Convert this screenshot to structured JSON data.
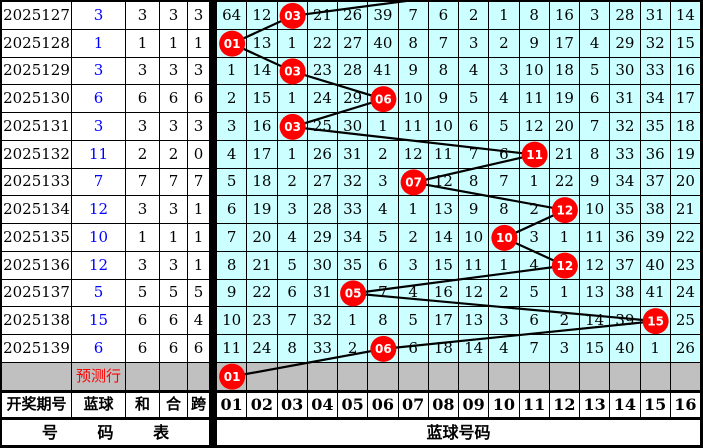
{
  "colors": {
    "grid_bg": "#ccffff",
    "prediction_bg": "#c0c0c0",
    "ball_red": "#ff0000",
    "ball_text": "#ffffff",
    "blue_value": "#0000ff",
    "line": "#000000"
  },
  "left_header": {
    "period": "开奖期号",
    "blue": "蓝球",
    "sum": "和",
    "combine": "合",
    "span": "跨"
  },
  "footer": {
    "left": "号 码 表",
    "right": "蓝球号码"
  },
  "columns": [
    "01",
    "02",
    "03",
    "04",
    "05",
    "06",
    "07",
    "08",
    "09",
    "10",
    "11",
    "12",
    "13",
    "14",
    "15",
    "16"
  ],
  "prediction": {
    "label": "预测行",
    "ball": "01",
    "draw": 1
  },
  "incoming_from_column": 10,
  "rows": [
    {
      "period": "2025127",
      "blue": "3",
      "sum": "3",
      "combine": "3",
      "span": "3",
      "draw": 3,
      "cells": [
        "64",
        "12",
        "03",
        "21",
        "26",
        "39",
        "7",
        "6",
        "2",
        "1",
        "8",
        "16",
        "3",
        "28",
        "31",
        "14"
      ]
    },
    {
      "period": "2025128",
      "blue": "1",
      "sum": "1",
      "combine": "1",
      "span": "1",
      "draw": 1,
      "cells": [
        "01",
        "13",
        "1",
        "22",
        "27",
        "40",
        "8",
        "7",
        "3",
        "2",
        "9",
        "17",
        "4",
        "29",
        "32",
        "15"
      ]
    },
    {
      "period": "2025129",
      "blue": "3",
      "sum": "3",
      "combine": "3",
      "span": "3",
      "draw": 3,
      "cells": [
        "1",
        "14",
        "03",
        "23",
        "28",
        "41",
        "9",
        "8",
        "4",
        "3",
        "10",
        "18",
        "5",
        "30",
        "33",
        "16"
      ]
    },
    {
      "period": "2025130",
      "blue": "6",
      "sum": "6",
      "combine": "6",
      "span": "6",
      "draw": 6,
      "cells": [
        "2",
        "15",
        "1",
        "24",
        "29",
        "06",
        "10",
        "9",
        "5",
        "4",
        "11",
        "19",
        "6",
        "31",
        "34",
        "17"
      ]
    },
    {
      "period": "2025131",
      "blue": "3",
      "sum": "3",
      "combine": "3",
      "span": "3",
      "draw": 3,
      "cells": [
        "3",
        "16",
        "03",
        "25",
        "30",
        "1",
        "11",
        "10",
        "6",
        "5",
        "12",
        "20",
        "7",
        "32",
        "35",
        "18"
      ]
    },
    {
      "period": "2025132",
      "blue": "11",
      "sum": "2",
      "combine": "2",
      "span": "0",
      "draw": 11,
      "cells": [
        "4",
        "17",
        "1",
        "26",
        "31",
        "2",
        "12",
        "11",
        "7",
        "6",
        "11",
        "21",
        "8",
        "33",
        "36",
        "19"
      ]
    },
    {
      "period": "2025133",
      "blue": "7",
      "sum": "7",
      "combine": "7",
      "span": "7",
      "draw": 7,
      "cells": [
        "5",
        "18",
        "2",
        "27",
        "32",
        "3",
        "07",
        "12",
        "8",
        "7",
        "1",
        "22",
        "9",
        "34",
        "37",
        "20"
      ]
    },
    {
      "period": "2025134",
      "blue": "12",
      "sum": "3",
      "combine": "3",
      "span": "1",
      "draw": 12,
      "cells": [
        "6",
        "19",
        "3",
        "28",
        "33",
        "4",
        "1",
        "13",
        "9",
        "8",
        "2",
        "12",
        "10",
        "35",
        "38",
        "21"
      ]
    },
    {
      "period": "2025135",
      "blue": "10",
      "sum": "1",
      "combine": "1",
      "span": "1",
      "draw": 10,
      "cells": [
        "7",
        "20",
        "4",
        "29",
        "34",
        "5",
        "2",
        "14",
        "10",
        "10",
        "3",
        "1",
        "11",
        "36",
        "39",
        "22"
      ]
    },
    {
      "period": "2025136",
      "blue": "12",
      "sum": "3",
      "combine": "3",
      "span": "1",
      "draw": 12,
      "cells": [
        "8",
        "21",
        "5",
        "30",
        "35",
        "6",
        "3",
        "15",
        "11",
        "1",
        "4",
        "12",
        "12",
        "37",
        "40",
        "23"
      ]
    },
    {
      "period": "2025137",
      "blue": "5",
      "sum": "5",
      "combine": "5",
      "span": "5",
      "draw": 5,
      "cells": [
        "9",
        "22",
        "6",
        "31",
        "05",
        "7",
        "4",
        "16",
        "12",
        "2",
        "5",
        "1",
        "13",
        "38",
        "41",
        "24"
      ]
    },
    {
      "period": "2025138",
      "blue": "15",
      "sum": "6",
      "combine": "6",
      "span": "4",
      "draw": 15,
      "cells": [
        "10",
        "23",
        "7",
        "32",
        "1",
        "8",
        "5",
        "17",
        "13",
        "3",
        "6",
        "2",
        "14",
        "39",
        "15",
        "25"
      ]
    },
    {
      "period": "2025139",
      "blue": "6",
      "sum": "6",
      "combine": "6",
      "span": "6",
      "draw": 6,
      "cells": [
        "11",
        "24",
        "8",
        "33",
        "2",
        "06",
        "6",
        "18",
        "14",
        "4",
        "7",
        "3",
        "15",
        "40",
        "1",
        "26"
      ]
    }
  ],
  "chart_data": {
    "type": "table",
    "periods": [
      "2025127",
      "2025128",
      "2025129",
      "2025130",
      "2025131",
      "2025132",
      "2025133",
      "2025134",
      "2025135",
      "2025136",
      "2025137",
      "2025138",
      "2025139"
    ],
    "series": [
      {
        "name": "蓝球",
        "values": [
          3,
          1,
          3,
          6,
          3,
          11,
          7,
          12,
          10,
          12,
          5,
          15,
          6
        ]
      },
      {
        "name": "和",
        "values": [
          3,
          1,
          3,
          6,
          3,
          2,
          7,
          3,
          1,
          3,
          5,
          6,
          6
        ]
      },
      {
        "name": "合",
        "values": [
          3,
          1,
          3,
          6,
          3,
          2,
          7,
          3,
          1,
          3,
          5,
          6,
          6
        ]
      },
      {
        "name": "跨",
        "values": [
          3,
          1,
          3,
          6,
          3,
          0,
          7,
          1,
          1,
          1,
          5,
          4,
          6
        ]
      }
    ],
    "x_categories": [
      "01",
      "02",
      "03",
      "04",
      "05",
      "06",
      "07",
      "08",
      "09",
      "10",
      "11",
      "12",
      "13",
      "14",
      "15",
      "16"
    ],
    "prediction_value": 1,
    "legend": [
      "号 码 表",
      "蓝球号码"
    ]
  }
}
